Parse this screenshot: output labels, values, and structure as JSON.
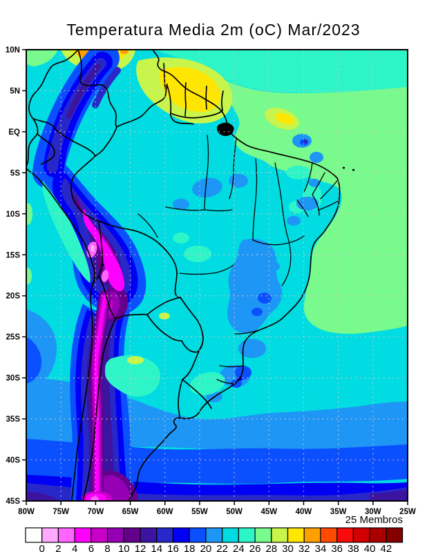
{
  "title": "Temperatura Media 2m (oC) Mar/2023",
  "colorbar": {
    "members_label": "25 Membros",
    "tick_labels": [
      "0",
      "2",
      "4",
      "6",
      "8",
      "10",
      "12",
      "14",
      "16",
      "18",
      "20",
      "22",
      "24",
      "26",
      "28",
      "30",
      "32",
      "34",
      "36",
      "38",
      "40",
      "42"
    ],
    "colors": [
      "#ffffff",
      "#ffaaff",
      "#ff64ff",
      "#ff00ff",
      "#c800c8",
      "#9600b4",
      "#64008c",
      "#3c14a0",
      "#2828c8",
      "#0000f5",
      "#0a50ff",
      "#1e96f5",
      "#00dce1",
      "#2df5c8",
      "#78fa8c",
      "#c8f54b",
      "#ffe600",
      "#ffa000",
      "#ff4b00",
      "#fa0a0a",
      "#d20000",
      "#aa0000",
      "#820000"
    ]
  },
  "axes": {
    "lat_labels": [
      "10N",
      "5N",
      "EQ",
      "5S",
      "10S",
      "15S",
      "20S",
      "25S",
      "30S",
      "35S",
      "40S",
      "45S"
    ],
    "lon_labels": [
      "80W",
      "75W",
      "70W",
      "65W",
      "60W",
      "55W",
      "50W",
      "45W",
      "40W",
      "35W",
      "30W",
      "25W"
    ]
  },
  "chart_data": {
    "type": "heatmap",
    "title": "Temperatura Media 2m (oC) Mar/2023",
    "variable": "2 m mean air temperature",
    "units": "oC",
    "period": "Mar/2023",
    "ensemble_members": 25,
    "lon_range": [
      "80W",
      "25W"
    ],
    "lat_range": [
      "45S",
      "10N"
    ],
    "grid_interval_deg": 5,
    "colorbar": {
      "boundaries": [
        0,
        2,
        4,
        6,
        8,
        10,
        12,
        14,
        16,
        18,
        20,
        22,
        24,
        26,
        28,
        30,
        32,
        34,
        36,
        38,
        40,
        42
      ],
      "colors": [
        "#ffffff",
        "#ffaaff",
        "#ff64ff",
        "#ff00ff",
        "#c800c8",
        "#9600b4",
        "#64008c",
        "#3c14a0",
        "#2828c8",
        "#0000f5",
        "#0a50ff",
        "#1e96f5",
        "#00dce1",
        "#2df5c8",
        "#78fa8c",
        "#c8f54b",
        "#ffe600",
        "#ffa000",
        "#ff4b00",
        "#fa0a0a",
        "#d20000",
        "#aa0000",
        "#820000"
      ]
    },
    "regions_approx": [
      {
        "area": "Amazon basin and most lowland Brazil",
        "temp_c": "22-26"
      },
      {
        "area": "Tropical Atlantic off NE Brazil",
        "temp_c": "26-28"
      },
      {
        "area": "Venezuela / Colombia llanos",
        "temp_c": "28-34"
      },
      {
        "area": "Guyana highlands patch",
        "temp_c": "28-32"
      },
      {
        "area": "Colombian Andes streaks",
        "temp_c": "12-18"
      },
      {
        "area": "Peru-Bolivia Altiplano core",
        "temp_c": "2-6"
      },
      {
        "area": "Andes strip along Chile",
        "temp_c": "4-10"
      },
      {
        "area": "SE Brazil highlands",
        "temp_c": "18-22"
      },
      {
        "area": "Pampas / Uruguay",
        "temp_c": "20-24"
      },
      {
        "area": "South Atlantic at 45S",
        "temp_c": "12-16"
      },
      {
        "area": "Patagonia far south",
        "temp_c": "6-14"
      }
    ]
  }
}
